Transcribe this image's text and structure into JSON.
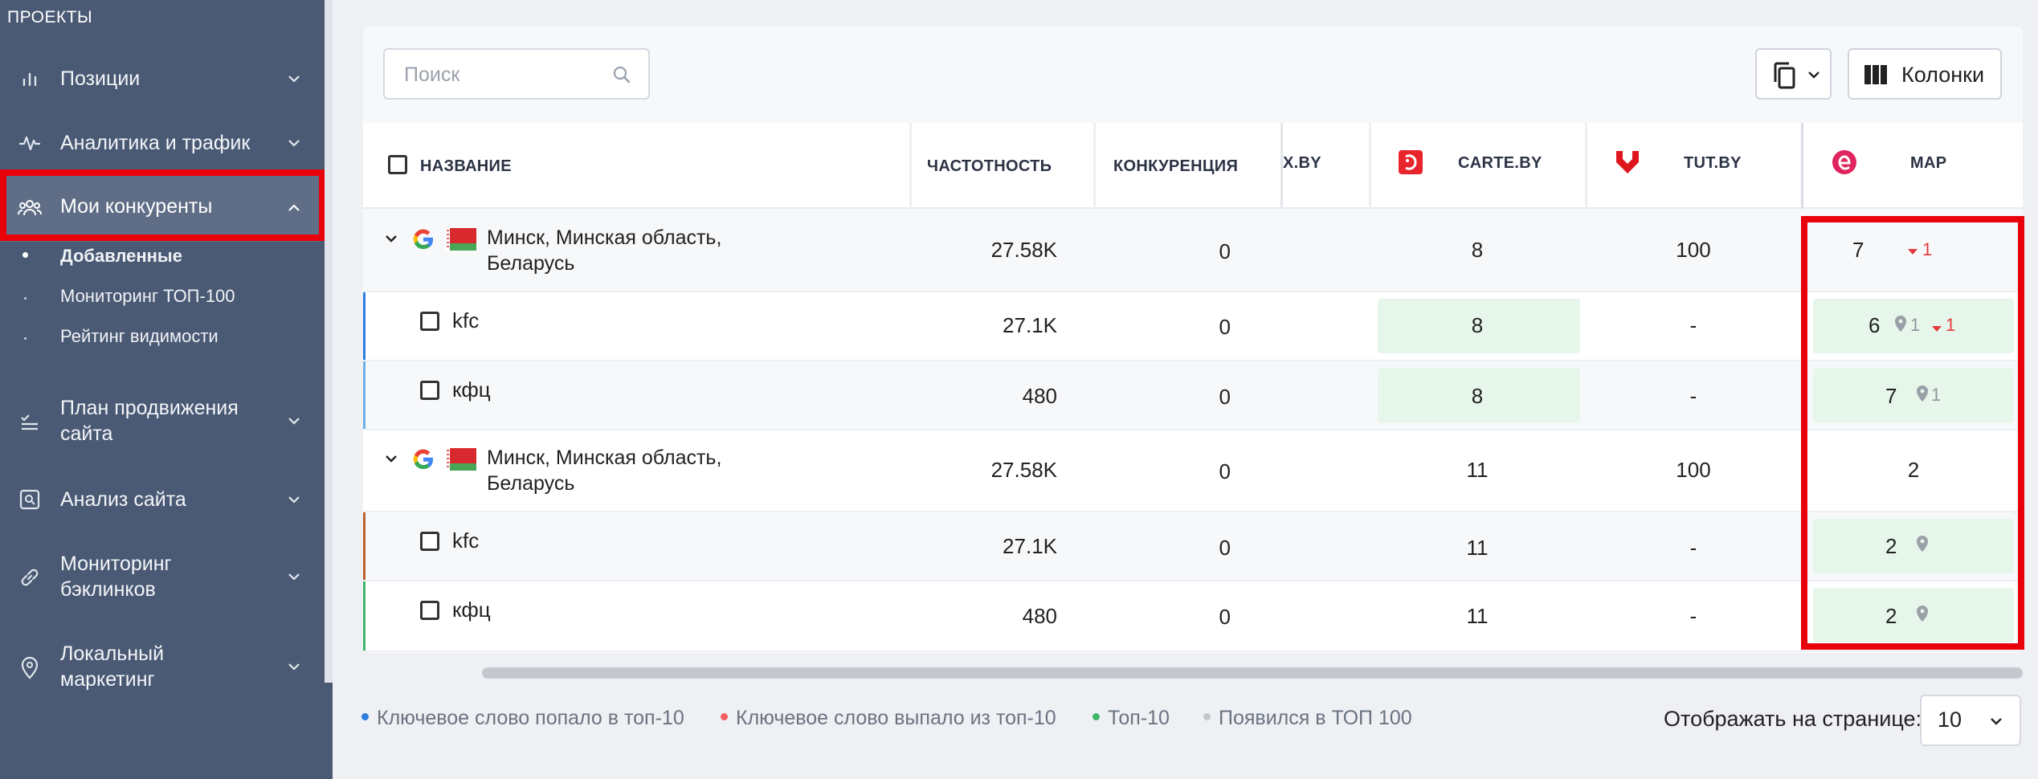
{
  "sidebar": {
    "section_title": "ПРОЕКТЫ",
    "items": [
      {
        "label": "Позиции"
      },
      {
        "label": "Аналитика и трафик"
      },
      {
        "label": "Мои конкуренты"
      },
      {
        "label": "План продвижения сайта"
      },
      {
        "label": "Анализ сайта"
      },
      {
        "label": "Мониторинг бэклинков"
      },
      {
        "label": "Локальный маркетинг"
      }
    ],
    "sub_items": [
      {
        "label": "Добавленные"
      },
      {
        "label": "Мониторинг ТОП-100"
      },
      {
        "label": "Рейтинг видимости"
      }
    ],
    "plan_line1": "План продвижения",
    "plan_line2": "сайта",
    "backlinks_line1": "Мониторинг",
    "backlinks_line2": "бэклинков",
    "local_line1": "Локальный",
    "local_line2": "маркетинг"
  },
  "toolbar": {
    "search_placeholder": "Поиск",
    "columns_label": "Колонки"
  },
  "table": {
    "headers": {
      "name": "НАЗВАНИЕ",
      "frequency": "ЧАСТОТНОСТЬ",
      "competition": "КОНКУРЕНЦИЯ",
      "partial": "X.BY",
      "carte": "CARTE.BY",
      "tut": "TUT.BY",
      "map": "MAP"
    },
    "groups": [
      {
        "region_line1": "Минск, Минская область,",
        "region_line2": "Беларусь",
        "frequency": "27.58K",
        "competition": "0",
        "carte": "8",
        "tut": "100",
        "map": "7",
        "map_change": "1",
        "rows": [
          {
            "keyword": "kfc",
            "frequency": "27.1K",
            "competition": "0",
            "carte": "8",
            "tut": "-",
            "map": "6",
            "map_pin": "1",
            "map_change": "1"
          },
          {
            "keyword": "кфц",
            "frequency": "480",
            "competition": "0",
            "carte": "8",
            "tut": "-",
            "map": "7",
            "map_pin": "1"
          }
        ]
      },
      {
        "region_line1": "Минск, Минская область,",
        "region_line2": "Беларусь",
        "frequency": "27.58K",
        "competition": "0",
        "carte": "11",
        "tut": "100",
        "map": "2",
        "rows": [
          {
            "keyword": "kfc",
            "frequency": "27.1K",
            "competition": "0",
            "carte": "11",
            "tut": "-",
            "map": "2"
          },
          {
            "keyword": "кфц",
            "frequency": "480",
            "competition": "0",
            "carte": "11",
            "tut": "-",
            "map": "2"
          }
        ]
      }
    ]
  },
  "legend": [
    {
      "label": "Ключевое слово попало в топ-10",
      "color": "#2f7de1"
    },
    {
      "label": "Ключевое слово выпало из топ-10",
      "color": "#f25c5c"
    },
    {
      "label": "Топ-10",
      "color": "#3fb56b"
    },
    {
      "label": "Появился в ТОП 100",
      "color": "#c3c7cd"
    }
  ],
  "pagination": {
    "per_page_label": "Отображать на странице:",
    "per_page_value": "10"
  },
  "colors": {
    "highlight": "#e8000b",
    "sidebar_bg": "#4a5a74",
    "top10_bg": "#e6f6ea",
    "drop_red": "#e23b3b"
  }
}
